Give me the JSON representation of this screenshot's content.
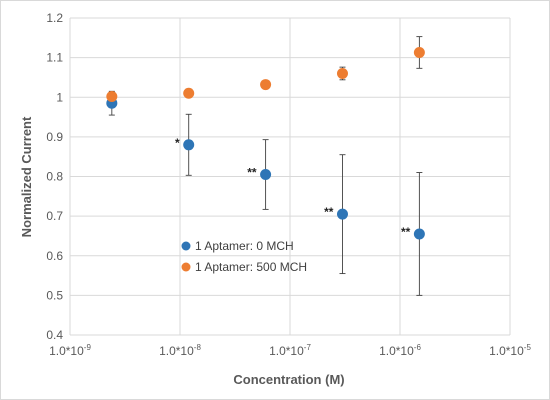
{
  "chart_data": {
    "type": "scatter",
    "xlabel": "Concentration (M)",
    "ylabel": "Normalized Current",
    "xscale": "log",
    "xlim": [
      1e-09,
      1e-05
    ],
    "ylim": [
      0.4,
      1.2
    ],
    "grid": true,
    "legend_position": "center",
    "x_tick_values": [
      1e-09,
      1e-08,
      1e-07,
      1e-06,
      1e-05
    ],
    "x_tick_labels": [
      {
        "base": "1.0*10",
        "exp": "-9"
      },
      {
        "base": "1.0*10",
        "exp": "-8"
      },
      {
        "base": "1.0*10",
        "exp": "-7"
      },
      {
        "base": "1.0*10",
        "exp": "-6"
      },
      {
        "base": "1.0*10",
        "exp": "-5"
      }
    ],
    "y_tick_values": [
      0.4,
      0.5,
      0.6,
      0.7,
      0.8,
      0.9,
      1.0,
      1.1,
      1.2
    ],
    "y_tick_labels": [
      "0.4",
      "0.5",
      "0.6",
      "0.7",
      "0.8",
      "0.9",
      "1",
      "1.1",
      "1.2"
    ],
    "x": [
      2.4e-09,
      1.2e-08,
      6e-08,
      3e-07,
      1.5e-06
    ],
    "series": [
      {
        "name": "1 Aptamer: 0 MCH",
        "color": "#2e75b6",
        "values": [
          0.985,
          0.88,
          0.805,
          0.705,
          0.655
        ],
        "errors": [
          0.03,
          0.077,
          0.088,
          0.15,
          0.155
        ],
        "annotations": [
          "",
          "*",
          "**",
          "**",
          "**"
        ]
      },
      {
        "name": "1 Aptamer: 500 MCH",
        "color": "#ed7d31",
        "values": [
          1.002,
          1.01,
          1.032,
          1.06,
          1.113
        ],
        "errors": [
          0.008,
          0.004,
          0.003,
          0.016,
          0.04
        ],
        "annotations": [
          "",
          "",
          "",
          "",
          ""
        ]
      }
    ]
  }
}
